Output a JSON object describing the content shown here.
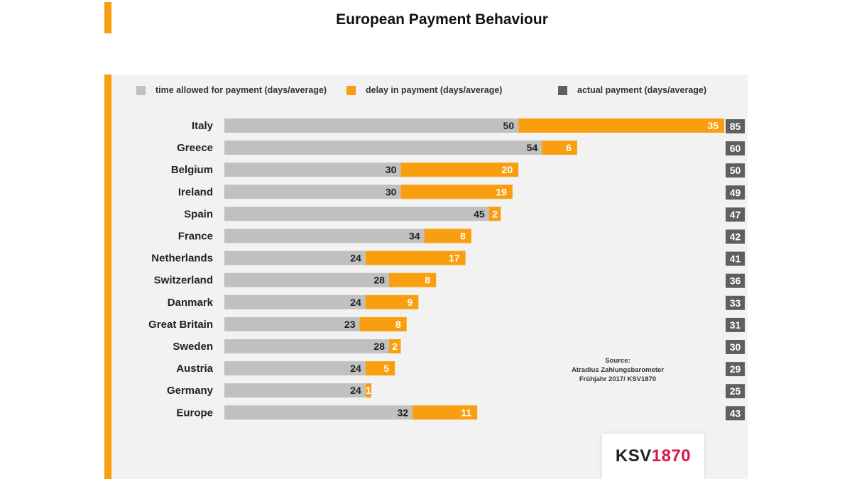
{
  "title": "European Payment Behaviour",
  "legend": [
    {
      "label": "time allowed for payment (days/average)",
      "color": "#c0c0c0"
    },
    {
      "label": "delay in payment (days/average)",
      "color": "#f99f0f"
    },
    {
      "label": "actual payment (days/average)",
      "color": "#5f5f5f"
    }
  ],
  "source": {
    "heading": "Source:",
    "line1": "Atradius Zahlungsbarometer",
    "line2": "Frühjahr 2017/ KSV1870"
  },
  "logo": {
    "text_dark": "KSV",
    "text_accent": "1870",
    "color_dark": "#222222",
    "color_accent": "#d8174e"
  },
  "colors": {
    "accent": "#f99f0f",
    "panel": "#f2f2f2"
  },
  "chart_data": {
    "type": "bar",
    "orientation": "horizontal",
    "stacked": true,
    "categories": [
      "Italy",
      "Greece",
      "Belgium",
      "Ireland",
      "Spain",
      "France",
      "Netherlands",
      "Switzerland",
      "Danmark",
      "Great Britain",
      "Sweden",
      "Austria",
      "Germany",
      "Europe"
    ],
    "series": [
      {
        "name": "time allowed for payment (days/average)",
        "color": "#c0c0c0",
        "values": [
          50,
          54,
          30,
          30,
          45,
          34,
          24,
          28,
          24,
          23,
          28,
          24,
          24,
          32
        ]
      },
      {
        "name": "delay in payment (days/average)",
        "color": "#f99f0f",
        "values": [
          35,
          6,
          20,
          19,
          2,
          8,
          17,
          8,
          9,
          8,
          2,
          5,
          1,
          11
        ]
      }
    ],
    "totals": {
      "name": "actual payment (days/average)",
      "color": "#5f5f5f",
      "values": [
        85,
        60,
        50,
        49,
        47,
        42,
        41,
        36,
        33,
        31,
        30,
        29,
        25,
        43
      ]
    },
    "xlim": [
      0,
      85
    ],
    "title": "European Payment Behaviour",
    "xlabel": "",
    "ylabel": "",
    "grid": false,
    "legend_position": "top"
  }
}
